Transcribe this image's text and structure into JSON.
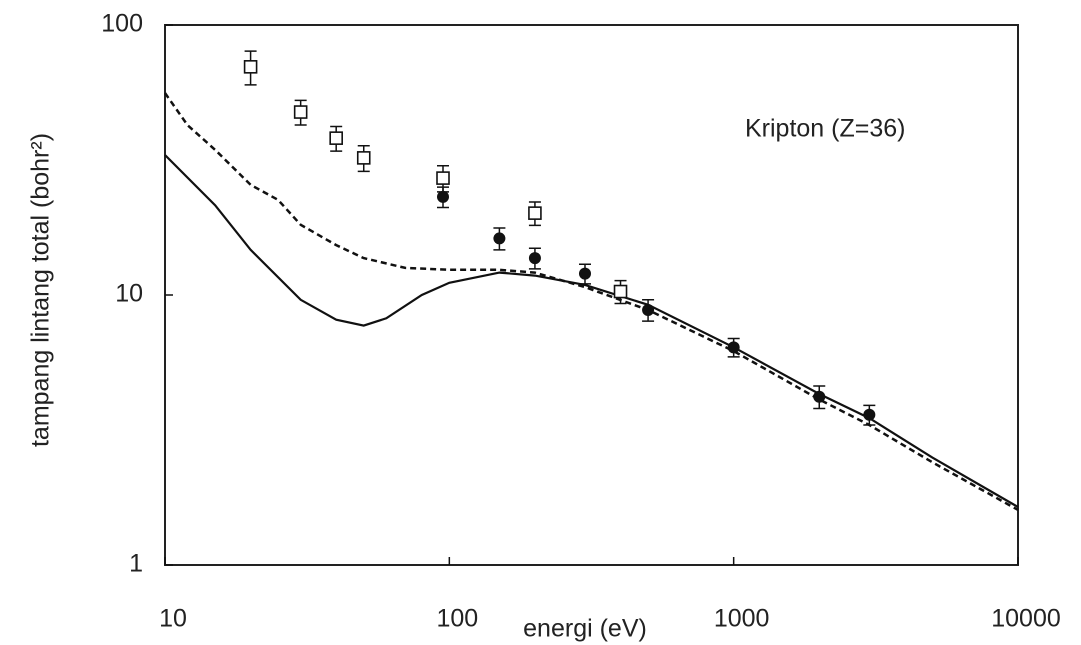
{
  "chart_data": {
    "type": "line",
    "x_label": "energi (eV)",
    "y_label": "tampang lintang total (bohr²)",
    "annotation": "Kripton (Z=36)",
    "xscale": "log",
    "yscale": "log",
    "xlim": [
      10,
      10000
    ],
    "ylim": [
      1,
      100
    ],
    "xticks": [
      10,
      100,
      1000,
      10000
    ],
    "yticks": [
      1,
      10,
      100
    ],
    "color": "#111111",
    "series": [
      {
        "type": "line",
        "dash": "solid",
        "x": [
          10,
          15,
          20,
          30,
          40,
          50,
          60,
          80,
          100,
          150,
          200,
          300,
          500,
          1000,
          2000,
          3000,
          5000,
          10000
        ],
        "values": [
          33,
          21.5,
          14.7,
          9.6,
          8.1,
          7.7,
          8.2,
          10,
          11.1,
          12.1,
          11.8,
          10.9,
          9.2,
          6.4,
          4.3,
          3.5,
          2.5,
          1.64
        ]
      },
      {
        "type": "line",
        "dash": "dashed",
        "x": [
          10,
          12,
          15,
          20,
          25,
          30,
          40,
          50,
          70,
          100,
          150,
          200,
          300,
          500,
          1000,
          2000,
          3000,
          5000,
          10000
        ],
        "values": [
          56,
          42.6,
          34.5,
          25.6,
          22.5,
          18.2,
          15.3,
          13.7,
          12.6,
          12.4,
          12.4,
          12.1,
          10.7,
          8.8,
          6.2,
          4.1,
          3.3,
          2.4,
          1.6
        ]
      },
      {
        "type": "scatter",
        "marker": "square-open",
        "x": [
          20,
          30,
          40,
          50,
          95,
          200,
          400
        ],
        "values": [
          70,
          47.6,
          38.1,
          32.2,
          27.1,
          20.1,
          10.3
        ],
        "errors": [
          10,
          5,
          4,
          3.5,
          3,
          2,
          1
        ]
      },
      {
        "type": "scatter",
        "marker": "circle-filled",
        "x": [
          95,
          150,
          200,
          300,
          500,
          1000,
          2000,
          3000
        ],
        "values": [
          23.1,
          16.2,
          13.7,
          12.0,
          8.8,
          6.4,
          4.2,
          3.6
        ],
        "errors": [
          2,
          1.5,
          1.2,
          1,
          0.8,
          0.5,
          0.4,
          0.3
        ]
      }
    ]
  }
}
